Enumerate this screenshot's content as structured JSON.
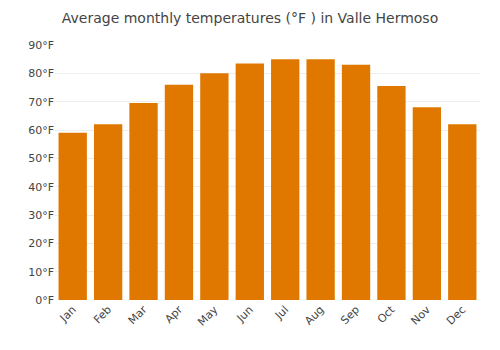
{
  "chart_data": {
    "type": "bar",
    "title": "Average monthly temperatures (°F ) in Valle Hermoso",
    "categories": [
      "Jan",
      "Feb",
      "Mar",
      "Apr",
      "May",
      "Jun",
      "Jul",
      "Aug",
      "Sep",
      "Oct",
      "Nov",
      "Dec"
    ],
    "values": [
      59,
      62,
      69.5,
      76,
      80,
      83.5,
      85,
      85,
      83,
      75.5,
      68,
      62
    ],
    "color": "#E07800",
    "ylim": [
      0,
      90
    ],
    "yticks": [
      {
        "value": 0,
        "label": "0°F"
      },
      {
        "value": 10,
        "label": "10°F"
      },
      {
        "value": 20,
        "label": "20°F"
      },
      {
        "value": 30,
        "label": "30°F"
      },
      {
        "value": 40,
        "label": "40°F"
      },
      {
        "value": 50,
        "label": "50°F"
      },
      {
        "value": 60,
        "label": "60°F"
      },
      {
        "value": 70,
        "label": "70°F"
      },
      {
        "value": 80,
        "label": "80°F"
      },
      {
        "value": 90,
        "label": "90°F"
      }
    ],
    "grid": true
  }
}
